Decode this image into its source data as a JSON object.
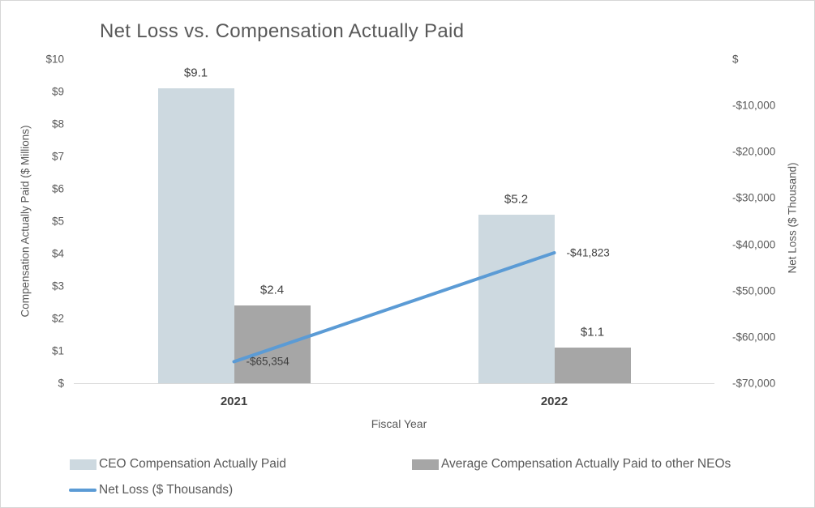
{
  "chart_data": {
    "type": "bar+line combo",
    "title": "Net Loss vs. Compensation Actually Paid",
    "categories": [
      "2021",
      "2022"
    ],
    "series": [
      {
        "name": "CEO Compensation Actually Paid",
        "type": "bar",
        "axis": "left",
        "values": [
          9.1,
          5.2
        ],
        "data_labels": [
          "$9.1",
          "$5.2"
        ],
        "color": "#cdd9e0"
      },
      {
        "name": "Average Compensation Actually Paid to other NEOs",
        "type": "bar",
        "axis": "left",
        "values": [
          2.4,
          1.1
        ],
        "data_labels": [
          "$2.4",
          "$1.1"
        ],
        "color": "#a6a6a6"
      },
      {
        "name": "Net Loss ($ Thousands)",
        "type": "line",
        "axis": "right",
        "values": [
          -65354,
          -41823
        ],
        "data_labels": [
          "-$65,354",
          "-$41,823"
        ],
        "color": "#5b9bd5"
      }
    ],
    "left_axis": {
      "title": "Compensation Actually Paid ($ Millions)",
      "min": 0,
      "max": 10,
      "ticks_bottom_to_top": [
        "$",
        "$1",
        "$2",
        "$3",
        "$4",
        "$5",
        "$6",
        "$7",
        "$8",
        "$9",
        "$10"
      ]
    },
    "right_axis": {
      "title": "Net Loss ($ Thousand)",
      "min": -70000,
      "max": 0,
      "ticks_top_to_bottom": [
        "$",
        "-$10,000",
        "-$20,000",
        "-$30,000",
        "-$40,000",
        "-$50,000",
        "-$60,000",
        "-$70,000"
      ]
    },
    "xlabel": "Fiscal Year",
    "grid": false,
    "legend_position": "bottom",
    "colors": {
      "title_text": "#595959",
      "tick_text": "#595959",
      "data_label_text": "#404040",
      "axis_line": "#d9d9d9"
    }
  }
}
